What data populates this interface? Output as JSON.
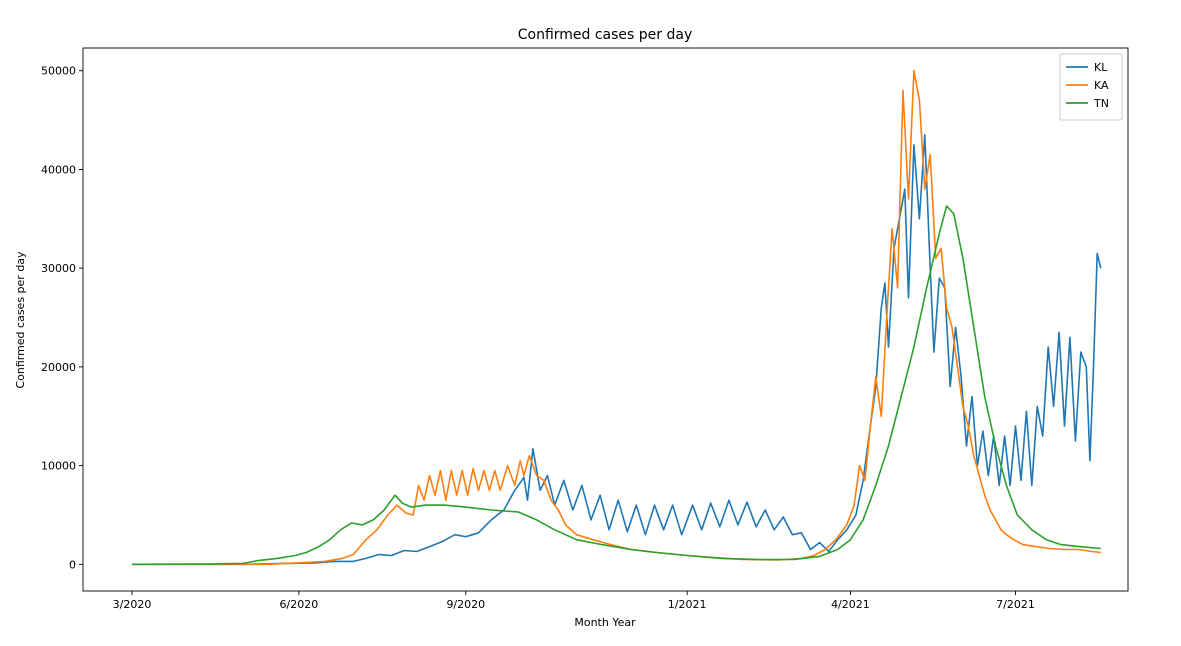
{
  "chart_data": {
    "type": "line",
    "title": "Confirmed cases per day",
    "xlabel": "Month Year",
    "ylabel": "Confirmed cases per day",
    "xlim": [
      "2020-02-03",
      "2021-09-01"
    ],
    "ylim": [
      -2700,
      52300
    ],
    "x_ticks": [
      {
        "date": "2020-03-01",
        "label": "3/2020"
      },
      {
        "date": "2020-06-01",
        "label": "6/2020"
      },
      {
        "date": "2020-09-01",
        "label": "9/2020"
      },
      {
        "date": "2021-01-01",
        "label": "1/2021"
      },
      {
        "date": "2021-04-01",
        "label": "4/2021"
      },
      {
        "date": "2021-07-01",
        "label": "7/2021"
      }
    ],
    "y_ticks": [
      0,
      10000,
      20000,
      30000,
      40000,
      50000
    ],
    "grid": false,
    "legend_position": "top-right",
    "series": [
      {
        "name": "KL",
        "color": "#1f77b4",
        "points": [
          [
            "2020-03-01",
            0
          ],
          [
            "2020-05-01",
            0
          ],
          [
            "2020-05-25",
            100
          ],
          [
            "2020-06-10",
            150
          ],
          [
            "2020-06-20",
            300
          ],
          [
            "2020-07-01",
            300
          ],
          [
            "2020-07-08",
            600
          ],
          [
            "2020-07-15",
            1000
          ],
          [
            "2020-07-22",
            900
          ],
          [
            "2020-07-29",
            1400
          ],
          [
            "2020-08-05",
            1300
          ],
          [
            "2020-08-12",
            1800
          ],
          [
            "2020-08-19",
            2300
          ],
          [
            "2020-08-26",
            3000
          ],
          [
            "2020-09-01",
            2800
          ],
          [
            "2020-09-08",
            3200
          ],
          [
            "2020-09-15",
            4500
          ],
          [
            "2020-09-22",
            5500
          ],
          [
            "2020-09-28",
            7500
          ],
          [
            "2020-10-03",
            8800
          ],
          [
            "2020-10-05",
            6500
          ],
          [
            "2020-10-08",
            11700
          ],
          [
            "2020-10-12",
            7500
          ],
          [
            "2020-10-16",
            9000
          ],
          [
            "2020-10-20",
            6000
          ],
          [
            "2020-10-25",
            8500
          ],
          [
            "2020-10-30",
            5500
          ],
          [
            "2020-11-04",
            8000
          ],
          [
            "2020-11-09",
            4500
          ],
          [
            "2020-11-14",
            7000
          ],
          [
            "2020-11-19",
            3500
          ],
          [
            "2020-11-24",
            6500
          ],
          [
            "2020-11-29",
            3300
          ],
          [
            "2020-12-04",
            6000
          ],
          [
            "2020-12-09",
            3000
          ],
          [
            "2020-12-14",
            6000
          ],
          [
            "2020-12-19",
            3500
          ],
          [
            "2020-12-24",
            6000
          ],
          [
            "2020-12-29",
            3000
          ],
          [
            "2021-01-04",
            6000
          ],
          [
            "2021-01-09",
            3500
          ],
          [
            "2021-01-14",
            6200
          ],
          [
            "2021-01-19",
            3800
          ],
          [
            "2021-01-24",
            6500
          ],
          [
            "2021-01-29",
            4000
          ],
          [
            "2021-02-03",
            6300
          ],
          [
            "2021-02-08",
            3800
          ],
          [
            "2021-02-13",
            5500
          ],
          [
            "2021-02-18",
            3500
          ],
          [
            "2021-02-23",
            4800
          ],
          [
            "2021-02-28",
            3000
          ],
          [
            "2021-03-05",
            3200
          ],
          [
            "2021-03-10",
            1500
          ],
          [
            "2021-03-15",
            2200
          ],
          [
            "2021-03-20",
            1300
          ],
          [
            "2021-03-25",
            2500
          ],
          [
            "2021-03-30",
            3500
          ],
          [
            "2021-04-04",
            5000
          ],
          [
            "2021-04-08",
            8500
          ],
          [
            "2021-04-12",
            14000
          ],
          [
            "2021-04-15",
            18000
          ],
          [
            "2021-04-18",
            26000
          ],
          [
            "2021-04-20",
            28500
          ],
          [
            "2021-04-22",
            22000
          ],
          [
            "2021-04-25",
            32000
          ],
          [
            "2021-04-28",
            35000
          ],
          [
            "2021-05-01",
            38000
          ],
          [
            "2021-05-03",
            27000
          ],
          [
            "2021-05-06",
            42500
          ],
          [
            "2021-05-09",
            35000
          ],
          [
            "2021-05-12",
            43500
          ],
          [
            "2021-05-15",
            30000
          ],
          [
            "2021-05-17",
            21500
          ],
          [
            "2021-05-20",
            29000
          ],
          [
            "2021-05-23",
            28000
          ],
          [
            "2021-05-26",
            18000
          ],
          [
            "2021-05-29",
            24000
          ],
          [
            "2021-06-01",
            19000
          ],
          [
            "2021-06-04",
            12000
          ],
          [
            "2021-06-07",
            17000
          ],
          [
            "2021-06-10",
            10000
          ],
          [
            "2021-06-13",
            13500
          ],
          [
            "2021-06-16",
            9000
          ],
          [
            "2021-06-19",
            13000
          ],
          [
            "2021-06-22",
            8000
          ],
          [
            "2021-06-25",
            13000
          ],
          [
            "2021-06-28",
            8000
          ],
          [
            "2021-07-01",
            14000
          ],
          [
            "2021-07-04",
            8500
          ],
          [
            "2021-07-07",
            15500
          ],
          [
            "2021-07-10",
            8000
          ],
          [
            "2021-07-13",
            16000
          ],
          [
            "2021-07-16",
            13000
          ],
          [
            "2021-07-19",
            22000
          ],
          [
            "2021-07-22",
            16000
          ],
          [
            "2021-07-25",
            23500
          ],
          [
            "2021-07-28",
            14000
          ],
          [
            "2021-07-31",
            23000
          ],
          [
            "2021-08-03",
            12500
          ],
          [
            "2021-08-06",
            21500
          ],
          [
            "2021-08-09",
            20000
          ],
          [
            "2021-08-11",
            10500
          ],
          [
            "2021-08-13",
            20000
          ],
          [
            "2021-08-15",
            31500
          ],
          [
            "2021-08-17",
            30000
          ]
        ]
      },
      {
        "name": "KA",
        "color": "#ff7f0e",
        "points": [
          [
            "2020-03-01",
            0
          ],
          [
            "2020-05-15",
            0
          ],
          [
            "2020-06-05",
            200
          ],
          [
            "2020-06-15",
            300
          ],
          [
            "2020-06-25",
            600
          ],
          [
            "2020-07-01",
            1000
          ],
          [
            "2020-07-08",
            2500
          ],
          [
            "2020-07-14",
            3500
          ],
          [
            "2020-07-20",
            5000
          ],
          [
            "2020-07-25",
            6000
          ],
          [
            "2020-07-30",
            5200
          ],
          [
            "2020-08-03",
            5000
          ],
          [
            "2020-08-06",
            8000
          ],
          [
            "2020-08-09",
            6500
          ],
          [
            "2020-08-12",
            9000
          ],
          [
            "2020-08-15",
            7000
          ],
          [
            "2020-08-18",
            9500
          ],
          [
            "2020-08-21",
            6500
          ],
          [
            "2020-08-24",
            9500
          ],
          [
            "2020-08-27",
            7000
          ],
          [
            "2020-08-30",
            9500
          ],
          [
            "2020-09-02",
            7000
          ],
          [
            "2020-09-05",
            9700
          ],
          [
            "2020-09-08",
            7500
          ],
          [
            "2020-09-11",
            9500
          ],
          [
            "2020-09-14",
            7500
          ],
          [
            "2020-09-17",
            9500
          ],
          [
            "2020-09-20",
            7500
          ],
          [
            "2020-09-24",
            10000
          ],
          [
            "2020-09-28",
            8000
          ],
          [
            "2020-10-01",
            10500
          ],
          [
            "2020-10-03",
            9000
          ],
          [
            "2020-10-06",
            11000
          ],
          [
            "2020-10-10",
            9000
          ],
          [
            "2020-10-14",
            8500
          ],
          [
            "2020-10-18",
            6500
          ],
          [
            "2020-10-22",
            5500
          ],
          [
            "2020-10-26",
            4000
          ],
          [
            "2020-11-01",
            3000
          ],
          [
            "2020-11-10",
            2500
          ],
          [
            "2020-11-20",
            2000
          ],
          [
            "2020-12-01",
            1500
          ],
          [
            "2020-12-15",
            1200
          ],
          [
            "2021-01-01",
            900
          ],
          [
            "2021-01-15",
            700
          ],
          [
            "2021-02-01",
            500
          ],
          [
            "2021-02-20",
            450
          ],
          [
            "2021-03-05",
            600
          ],
          [
            "2021-03-12",
            900
          ],
          [
            "2021-03-18",
            1500
          ],
          [
            "2021-03-24",
            2500
          ],
          [
            "2021-03-30",
            4000
          ],
          [
            "2021-04-03",
            6000
          ],
          [
            "2021-04-06",
            10000
          ],
          [
            "2021-04-09",
            8500
          ],
          [
            "2021-04-12",
            14000
          ],
          [
            "2021-04-15",
            19000
          ],
          [
            "2021-04-18",
            15000
          ],
          [
            "2021-04-21",
            25000
          ],
          [
            "2021-04-24",
            34000
          ],
          [
            "2021-04-27",
            28000
          ],
          [
            "2021-04-30",
            48000
          ],
          [
            "2021-05-03",
            37000
          ],
          [
            "2021-05-06",
            50000
          ],
          [
            "2021-05-09",
            47000
          ],
          [
            "2021-05-12",
            38000
          ],
          [
            "2021-05-15",
            41500
          ],
          [
            "2021-05-18",
            31000
          ],
          [
            "2021-05-21",
            32000
          ],
          [
            "2021-05-24",
            26000
          ],
          [
            "2021-05-27",
            24000
          ],
          [
            "2021-05-30",
            20000
          ],
          [
            "2021-06-02",
            16000
          ],
          [
            "2021-06-05",
            14000
          ],
          [
            "2021-06-08",
            11000
          ],
          [
            "2021-06-11",
            9000
          ],
          [
            "2021-06-14",
            7000
          ],
          [
            "2021-06-17",
            5500
          ],
          [
            "2021-06-20",
            4500
          ],
          [
            "2021-06-23",
            3500
          ],
          [
            "2021-06-26",
            3000
          ],
          [
            "2021-06-30",
            2500
          ],
          [
            "2021-07-05",
            2000
          ],
          [
            "2021-07-12",
            1800
          ],
          [
            "2021-07-20",
            1600
          ],
          [
            "2021-07-28",
            1500
          ],
          [
            "2021-08-05",
            1500
          ],
          [
            "2021-08-12",
            1300
          ],
          [
            "2021-08-17",
            1200
          ]
        ]
      },
      {
        "name": "TN",
        "color": "#2ca02c",
        "points": [
          [
            "2020-03-01",
            0
          ],
          [
            "2020-04-15",
            50
          ],
          [
            "2020-05-01",
            100
          ],
          [
            "2020-05-10",
            400
          ],
          [
            "2020-05-20",
            600
          ],
          [
            "2020-05-30",
            900
          ],
          [
            "2020-06-05",
            1200
          ],
          [
            "2020-06-12",
            1800
          ],
          [
            "2020-06-18",
            2500
          ],
          [
            "2020-06-24",
            3500
          ],
          [
            "2020-06-30",
            4200
          ],
          [
            "2020-07-06",
            4000
          ],
          [
            "2020-07-12",
            4500
          ],
          [
            "2020-07-18",
            5500
          ],
          [
            "2020-07-24",
            7000
          ],
          [
            "2020-07-28",
            6200
          ],
          [
            "2020-08-02",
            5800
          ],
          [
            "2020-08-10",
            6000
          ],
          [
            "2020-08-20",
            6000
          ],
          [
            "2020-09-01",
            5800
          ],
          [
            "2020-09-15",
            5500
          ],
          [
            "2020-09-30",
            5300
          ],
          [
            "2020-10-10",
            4500
          ],
          [
            "2020-10-20",
            3500
          ],
          [
            "2020-11-01",
            2500
          ],
          [
            "2020-11-15",
            2000
          ],
          [
            "2020-12-01",
            1500
          ],
          [
            "2020-12-15",
            1200
          ],
          [
            "2021-01-01",
            900
          ],
          [
            "2021-01-20",
            600
          ],
          [
            "2021-02-10",
            480
          ],
          [
            "2021-03-01",
            500
          ],
          [
            "2021-03-15",
            800
          ],
          [
            "2021-03-25",
            1500
          ],
          [
            "2021-04-01",
            2500
          ],
          [
            "2021-04-08",
            4500
          ],
          [
            "2021-04-15",
            8000
          ],
          [
            "2021-04-22",
            12000
          ],
          [
            "2021-04-29",
            17000
          ],
          [
            "2021-05-06",
            22000
          ],
          [
            "2021-05-13",
            28000
          ],
          [
            "2021-05-20",
            33500
          ],
          [
            "2021-05-24",
            36300
          ],
          [
            "2021-05-28",
            35500
          ],
          [
            "2021-06-02",
            31000
          ],
          [
            "2021-06-08",
            24000
          ],
          [
            "2021-06-14",
            17000
          ],
          [
            "2021-06-20",
            12000
          ],
          [
            "2021-06-26",
            8000
          ],
          [
            "2021-07-02",
            5000
          ],
          [
            "2021-07-10",
            3500
          ],
          [
            "2021-07-18",
            2500
          ],
          [
            "2021-07-26",
            2000
          ],
          [
            "2021-08-05",
            1800
          ],
          [
            "2021-08-17",
            1600
          ]
        ]
      }
    ]
  }
}
